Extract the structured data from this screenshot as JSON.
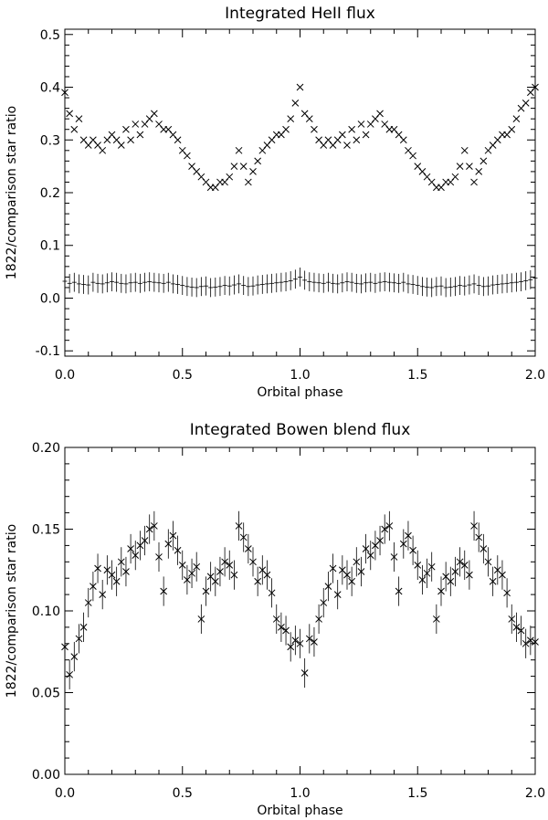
{
  "chart_data": [
    {
      "type": "scatter",
      "title": "Integrated HeII flux",
      "xlabel": "Orbital phase",
      "ylabel": "1822/comparison star ratio",
      "xlim": [
        0.0,
        2.0
      ],
      "ylim": [
        -0.11,
        0.51
      ],
      "xticks": [
        "0.0",
        "0.5",
        "1.0",
        "1.5",
        "2.0"
      ],
      "yticks": [
        "-0.1",
        "0.0",
        "0.1",
        "0.2",
        "0.3",
        "0.4",
        "0.5"
      ],
      "series": [
        {
          "marker": "x",
          "x": [
            0.0,
            0.02,
            0.04,
            0.06,
            0.08,
            0.1,
            0.12,
            0.14,
            0.16,
            0.18,
            0.2,
            0.22,
            0.24,
            0.26,
            0.28,
            0.3,
            0.32,
            0.34,
            0.36,
            0.38,
            0.4,
            0.42,
            0.44,
            0.46,
            0.48,
            0.5,
            0.52,
            0.54,
            0.56,
            0.58,
            0.6,
            0.62,
            0.64,
            0.66,
            0.68,
            0.7,
            0.72,
            0.74,
            0.76,
            0.78,
            0.8,
            0.82,
            0.84,
            0.86,
            0.88,
            0.9,
            0.92,
            0.94,
            0.96,
            0.98,
            1.0,
            1.02,
            1.04,
            1.06,
            1.08,
            1.1,
            1.12,
            1.14,
            1.16,
            1.18,
            1.2,
            1.22,
            1.24,
            1.26,
            1.28,
            1.3,
            1.32,
            1.34,
            1.36,
            1.38,
            1.4,
            1.42,
            1.44,
            1.46,
            1.48,
            1.5,
            1.52,
            1.54,
            1.56,
            1.58,
            1.6,
            1.62,
            1.64,
            1.66,
            1.68,
            1.7,
            1.72,
            1.74,
            1.76,
            1.78,
            1.8,
            1.82,
            1.84,
            1.86,
            1.88,
            1.9,
            1.92,
            1.94,
            1.96,
            1.98,
            2.0
          ],
          "y": [
            0.39,
            0.35,
            0.32,
            0.34,
            0.3,
            0.29,
            0.3,
            0.29,
            0.28,
            0.3,
            0.31,
            0.3,
            0.29,
            0.32,
            0.3,
            0.33,
            0.31,
            0.33,
            0.34,
            0.35,
            0.33,
            0.32,
            0.32,
            0.31,
            0.3,
            0.28,
            0.27,
            0.25,
            0.24,
            0.23,
            0.22,
            0.21,
            0.21,
            0.22,
            0.22,
            0.23,
            0.25,
            0.28,
            0.25,
            0.22,
            0.24,
            0.26,
            0.28,
            0.29,
            0.3,
            0.31,
            0.31,
            0.32,
            0.34,
            0.37,
            0.4,
            0.35,
            0.34,
            0.32,
            0.3,
            0.29,
            0.3,
            0.29,
            0.3,
            0.31,
            0.29,
            0.32,
            0.3,
            0.33,
            0.31,
            0.33,
            0.34,
            0.35,
            0.33,
            0.32,
            0.32,
            0.31,
            0.3,
            0.28,
            0.27,
            0.25,
            0.24,
            0.23,
            0.22,
            0.21,
            0.21,
            0.22,
            0.22,
            0.23,
            0.25,
            0.28,
            0.25,
            0.22,
            0.24,
            0.26,
            0.28,
            0.29,
            0.3,
            0.31,
            0.31,
            0.32,
            0.34,
            0.36,
            0.37,
            0.39,
            0.4
          ]
        },
        {
          "marker": "errorbar",
          "err": 0.018,
          "x": [
            0.0,
            0.02,
            0.04,
            0.06,
            0.08,
            0.1,
            0.12,
            0.14,
            0.16,
            0.18,
            0.2,
            0.22,
            0.24,
            0.26,
            0.28,
            0.3,
            0.32,
            0.34,
            0.36,
            0.38,
            0.4,
            0.42,
            0.44,
            0.46,
            0.48,
            0.5,
            0.52,
            0.54,
            0.56,
            0.58,
            0.6,
            0.62,
            0.64,
            0.66,
            0.68,
            0.7,
            0.72,
            0.74,
            0.76,
            0.78,
            0.8,
            0.82,
            0.84,
            0.86,
            0.88,
            0.9,
            0.92,
            0.94,
            0.96,
            0.98,
            1.0,
            1.02,
            1.04,
            1.06,
            1.08,
            1.1,
            1.12,
            1.14,
            1.16,
            1.18,
            1.2,
            1.22,
            1.24,
            1.26,
            1.28,
            1.3,
            1.32,
            1.34,
            1.36,
            1.38,
            1.4,
            1.42,
            1.44,
            1.46,
            1.48,
            1.5,
            1.52,
            1.54,
            1.56,
            1.58,
            1.6,
            1.62,
            1.64,
            1.66,
            1.68,
            1.7,
            1.72,
            1.74,
            1.76,
            1.78,
            1.8,
            1.82,
            1.84,
            1.86,
            1.88,
            1.9,
            1.92,
            1.94,
            1.96,
            1.98,
            2.0
          ],
          "y": [
            0.032,
            0.028,
            0.03,
            0.027,
            0.026,
            0.025,
            0.03,
            0.028,
            0.027,
            0.029,
            0.031,
            0.03,
            0.028,
            0.027,
            0.029,
            0.03,
            0.028,
            0.03,
            0.031,
            0.03,
            0.029,
            0.028,
            0.03,
            0.027,
            0.026,
            0.024,
            0.022,
            0.021,
            0.02,
            0.022,
            0.023,
            0.02,
            0.021,
            0.022,
            0.024,
            0.023,
            0.025,
            0.027,
            0.024,
            0.022,
            0.023,
            0.025,
            0.026,
            0.027,
            0.028,
            0.029,
            0.03,
            0.031,
            0.033,
            0.036,
            0.04,
            0.034,
            0.031,
            0.03,
            0.029,
            0.028,
            0.03,
            0.028,
            0.027,
            0.029,
            0.031,
            0.03,
            0.028,
            0.027,
            0.029,
            0.03,
            0.028,
            0.03,
            0.031,
            0.03,
            0.029,
            0.028,
            0.03,
            0.027,
            0.026,
            0.024,
            0.022,
            0.021,
            0.02,
            0.022,
            0.023,
            0.02,
            0.021,
            0.022,
            0.024,
            0.023,
            0.025,
            0.027,
            0.024,
            0.022,
            0.023,
            0.025,
            0.026,
            0.027,
            0.028,
            0.029,
            0.03,
            0.031,
            0.033,
            0.035,
            0.038
          ]
        }
      ]
    },
    {
      "type": "scatter",
      "title": "Integrated Bowen blend flux",
      "xlabel": "Orbital phase",
      "ylabel": "1822/comparison star ratio",
      "xlim": [
        0.0,
        2.0
      ],
      "ylim": [
        0.0,
        0.2
      ],
      "xticks": [
        "0.0",
        "0.5",
        "1.0",
        "1.5",
        "2.0"
      ],
      "yticks": [
        "0.00",
        "0.05",
        "0.10",
        "0.15",
        "0.20"
      ],
      "series": [
        {
          "marker": "x-errorbar",
          "err": 0.009,
          "x": [
            0.0,
            0.02,
            0.04,
            0.06,
            0.08,
            0.1,
            0.12,
            0.14,
            0.16,
            0.18,
            0.2,
            0.22,
            0.24,
            0.26,
            0.28,
            0.3,
            0.32,
            0.34,
            0.36,
            0.38,
            0.4,
            0.42,
            0.44,
            0.46,
            0.48,
            0.5,
            0.52,
            0.54,
            0.56,
            0.58,
            0.6,
            0.62,
            0.64,
            0.66,
            0.68,
            0.7,
            0.72,
            0.74,
            0.76,
            0.78,
            0.8,
            0.82,
            0.84,
            0.86,
            0.88,
            0.9,
            0.92,
            0.94,
            0.96,
            0.98,
            1.0,
            1.02,
            1.04,
            1.06,
            1.08,
            1.1,
            1.12,
            1.14,
            1.16,
            1.18,
            1.2,
            1.22,
            1.24,
            1.26,
            1.28,
            1.3,
            1.32,
            1.34,
            1.36,
            1.38,
            1.4,
            1.42,
            1.44,
            1.46,
            1.48,
            1.5,
            1.52,
            1.54,
            1.56,
            1.58,
            1.6,
            1.62,
            1.64,
            1.66,
            1.68,
            1.7,
            1.72,
            1.74,
            1.76,
            1.78,
            1.8,
            1.82,
            1.84,
            1.86,
            1.88,
            1.9,
            1.92,
            1.94,
            1.96,
            1.98,
            2.0
          ],
          "y": [
            0.078,
            0.061,
            0.072,
            0.083,
            0.09,
            0.105,
            0.115,
            0.126,
            0.11,
            0.125,
            0.122,
            0.118,
            0.13,
            0.124,
            0.138,
            0.134,
            0.14,
            0.143,
            0.15,
            0.152,
            0.133,
            0.112,
            0.141,
            0.146,
            0.137,
            0.128,
            0.119,
            0.123,
            0.127,
            0.095,
            0.112,
            0.121,
            0.118,
            0.124,
            0.13,
            0.128,
            0.122,
            0.152,
            0.145,
            0.138,
            0.13,
            0.118,
            0.125,
            0.122,
            0.111,
            0.095,
            0.09,
            0.088,
            0.078,
            0.082,
            0.08,
            0.062,
            0.083,
            0.081,
            0.095,
            0.105,
            0.115,
            0.126,
            0.11,
            0.125,
            0.122,
            0.118,
            0.13,
            0.124,
            0.138,
            0.134,
            0.14,
            0.143,
            0.15,
            0.152,
            0.133,
            0.112,
            0.141,
            0.146,
            0.137,
            0.128,
            0.119,
            0.123,
            0.127,
            0.095,
            0.112,
            0.121,
            0.118,
            0.124,
            0.13,
            0.128,
            0.122,
            0.152,
            0.145,
            0.138,
            0.13,
            0.118,
            0.125,
            0.122,
            0.111,
            0.095,
            0.09,
            0.088,
            0.08,
            0.082,
            0.081
          ]
        }
      ]
    }
  ]
}
